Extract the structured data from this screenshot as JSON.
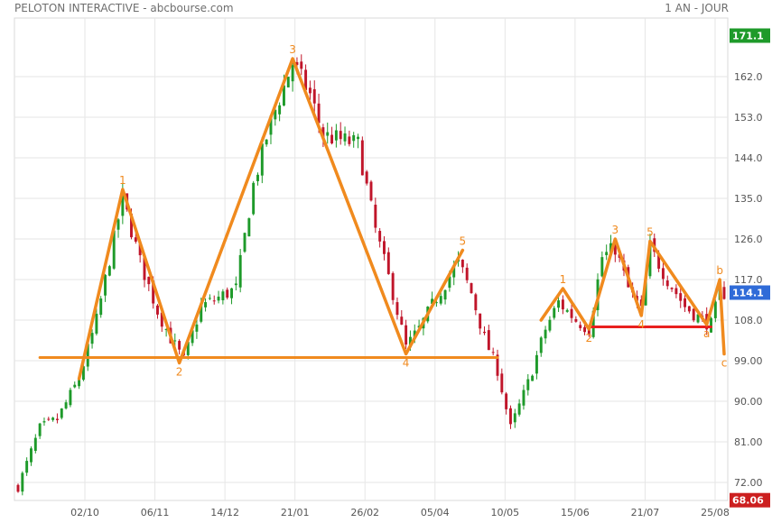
{
  "header": {
    "title": "PELOTON INTERACTIVE - abcbourse.com",
    "period": "1 AN - JOUR"
  },
  "chart_data": {
    "type": "candlestick",
    "ylim": [
      68,
      175
    ],
    "y_ticks": [
      72.0,
      81.0,
      90.0,
      99.0,
      108.0,
      117.0,
      126.0,
      135.0,
      144.0,
      153.0,
      162.0
    ],
    "x_tick_labels": [
      "02/10",
      "06/11",
      "14/12",
      "21/01",
      "26/02",
      "05/04",
      "10/05",
      "15/06",
      "21/07",
      "25/08"
    ],
    "grid": true,
    "price_badges": [
      {
        "label": "171.1",
        "value": 171.1,
        "color": "#1e9a2a"
      },
      {
        "label": "114.1",
        "value": 114.1,
        "color": "#2f6bd8"
      },
      {
        "label": "68.06",
        "value": 68.06,
        "color": "#cc1f1f"
      }
    ],
    "colors": {
      "up": "#1e9a2a",
      "down": "#c0152a",
      "wave": "#f08a1e",
      "neckline": "#e8201e"
    },
    "waves": [
      {
        "label": "1",
        "session": 24,
        "value": 137.0
      },
      {
        "label": "2",
        "session": 37,
        "value": 98.5
      },
      {
        "label": "3",
        "session": 63,
        "value": 166.0
      },
      {
        "label": "4",
        "session": 89,
        "value": 100.5
      },
      {
        "label": "5",
        "session": 102,
        "value": 123.5
      },
      {
        "label": "1",
        "session": 125,
        "value": 115.0
      },
      {
        "label": "2",
        "session": 131,
        "value": 106.0
      },
      {
        "label": "3",
        "session": 137,
        "value": 126.0
      },
      {
        "label": "4",
        "session": 143,
        "value": 109.0
      },
      {
        "label": "5",
        "session": 145,
        "value": 125.5
      },
      {
        "label": "a",
        "session": 158,
        "value": 107.0
      },
      {
        "label": "b",
        "session": 161,
        "value": 117.0
      },
      {
        "label": "c",
        "session": 162,
        "value": 100.5
      }
    ],
    "support_lines": [
      {
        "from_session": 5,
        "to_session": 110,
        "value": 99.7,
        "color": "wave"
      },
      {
        "from_session": 131,
        "to_session": 159,
        "value": 106.5,
        "color": "neckline"
      }
    ],
    "anchors": [
      [
        0,
        71
      ],
      [
        5,
        84
      ],
      [
        9,
        86
      ],
      [
        14,
        95
      ],
      [
        18,
        108
      ],
      [
        24,
        135
      ],
      [
        28,
        121
      ],
      [
        32,
        110
      ],
      [
        35,
        104
      ],
      [
        38,
        99
      ],
      [
        42,
        111
      ],
      [
        46,
        113
      ],
      [
        50,
        115
      ],
      [
        54,
        138
      ],
      [
        58,
        152
      ],
      [
        63,
        165
      ],
      [
        67,
        158
      ],
      [
        70,
        149
      ],
      [
        74,
        148
      ],
      [
        78,
        147
      ],
      [
        82,
        128
      ],
      [
        86,
        114
      ],
      [
        89,
        102
      ],
      [
        92,
        106
      ],
      [
        96,
        113
      ],
      [
        101,
        121
      ],
      [
        104,
        114
      ],
      [
        107,
        104
      ],
      [
        110,
        97
      ],
      [
        113,
        84
      ],
      [
        117,
        94
      ],
      [
        121,
        106
      ],
      [
        124,
        112
      ],
      [
        128,
        108
      ],
      [
        131,
        106
      ],
      [
        134,
        122
      ],
      [
        137,
        124
      ],
      [
        140,
        115
      ],
      [
        143,
        110
      ],
      [
        145,
        124
      ],
      [
        149,
        117
      ],
      [
        153,
        111
      ],
      [
        157,
        108
      ],
      [
        159,
        107
      ],
      [
        161,
        114
      ]
    ],
    "n_sessions": 162
  }
}
